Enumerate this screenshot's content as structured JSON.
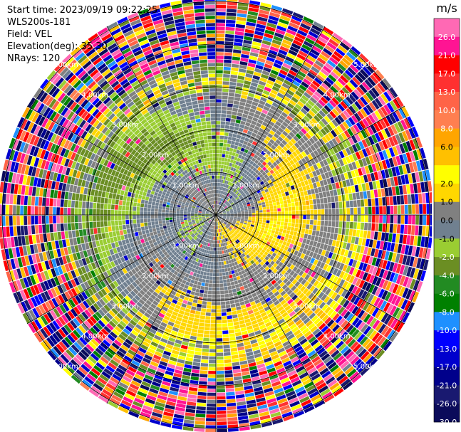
{
  "header": {
    "start_time": "Start time: 2023/09/19 09:22:25",
    "instrument": "WLS200s-181",
    "field": "Field: VEL",
    "elevation": "Elevation(deg): 35.30",
    "nrays": "NRays: 120"
  },
  "chart_data": {
    "type": "heatmap",
    "projection": "polar-ppi",
    "field": "VEL",
    "units": "m/s",
    "n_rays": 120,
    "range_rings_km": [
      1.0,
      2.0,
      3.0,
      4.0,
      5.0
    ],
    "ring_label_suffix": "km",
    "ring_label_azimuths_deg": [
      45,
      135,
      225,
      315
    ],
    "spoke_angles_deg": [
      0,
      30,
      60,
      90,
      120,
      150,
      180,
      210,
      240,
      270,
      300,
      330
    ],
    "colorbar": {
      "unit_label": "m/s",
      "bounds": [
        30.0,
        26.0,
        21.0,
        17.0,
        13.0,
        10.0,
        8.0,
        6.0,
        4.0,
        2.0,
        1.0,
        0.0,
        -1.0,
        -2.0,
        -4.0,
        -6.0,
        -8.0,
        -10.0,
        -13.0,
        -17.0,
        -21.0,
        -26.0,
        -30.0
      ],
      "tick_labels": [
        "26.0",
        "21.0",
        "17.0",
        "13.0",
        "10.0",
        "8.0",
        "6.0",
        "2.0",
        "1.0",
        "0.0",
        "-1.0",
        "-2.0",
        "-4.0",
        "-6.0",
        "-8.0",
        "-10.0",
        "-13.0",
        "-17.0",
        "-21.0",
        "-26.0",
        "-30.0"
      ],
      "tick_values": [
        26,
        21,
        17,
        13,
        10,
        8,
        6,
        2,
        1,
        0,
        -1,
        -2,
        -4,
        -6,
        -8,
        -10,
        -13,
        -17,
        -21,
        -26,
        -30
      ],
      "colors": [
        "#ff69b4",
        "#ff1493",
        "#ff0000",
        "#ff3030",
        "#ff6347",
        "#ff7f50",
        "#ffa500",
        "#ffc000",
        "#ffff00",
        "#ffd700",
        "#808080",
        "#708090",
        "#9acd32",
        "#6b8e23",
        "#228b22",
        "#008000",
        "#1e90ff",
        "#0000ff",
        "#0000cd",
        "#00008b",
        "#191970",
        "#0b0b5a"
      ]
    }
  }
}
